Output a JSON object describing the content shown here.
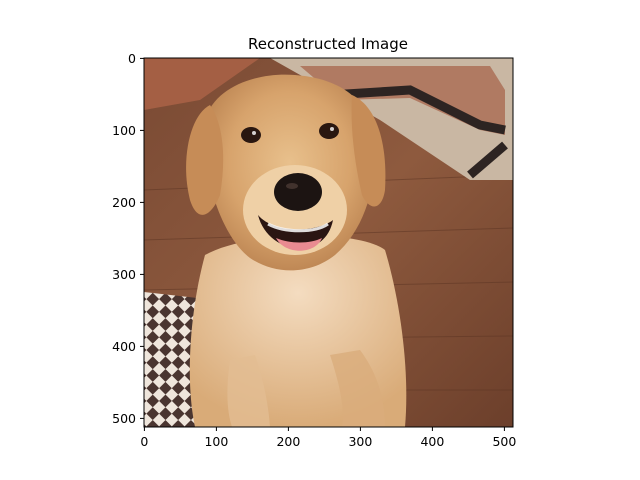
{
  "figure": {
    "title": "Reconstructed Image",
    "x_ticks": [
      "0",
      "100",
      "200",
      "300",
      "400",
      "500"
    ],
    "y_ticks": [
      "0",
      "100",
      "200",
      "300",
      "400",
      "500"
    ],
    "image_extent": {
      "width": 512,
      "height": 512
    },
    "image": {
      "subject": "golden retriever sitting on a wooden floor"
    }
  }
}
